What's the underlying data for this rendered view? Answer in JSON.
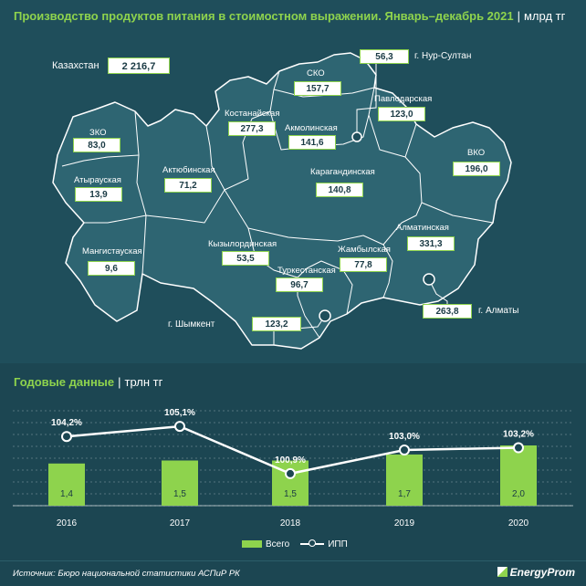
{
  "header": {
    "title": "Производство продуктов питания в стоимостном выражении. Январь–декабрь 2021",
    "unit": "млрд тг"
  },
  "total": {
    "label": "Казахстан",
    "value": "2 216,7"
  },
  "regions": [
    {
      "name": "ЗКО",
      "value": "83,0"
    },
    {
      "name": "Атырауская",
      "value": "13,9"
    },
    {
      "name": "Мангистауская",
      "value": "9,6"
    },
    {
      "name": "Актюбинская",
      "value": "71,2"
    },
    {
      "name": "Костанайская",
      "value": "277,3"
    },
    {
      "name": "СКО",
      "value": "157,7"
    },
    {
      "name": "Акмолинская",
      "value": "141,6"
    },
    {
      "name": "Павлодарская",
      "value": "123,0"
    },
    {
      "name": "ВКО",
      "value": "196,0"
    },
    {
      "name": "Карагандинская",
      "value": "140,8"
    },
    {
      "name": "Кызылординская",
      "value": "53,5"
    },
    {
      "name": "Туркестанская",
      "value": "96,7"
    },
    {
      "name": "Жамбылская",
      "value": "77,8"
    },
    {
      "name": "Алматинская",
      "value": "331,3"
    },
    {
      "name": "г. Нур-Султан",
      "value": "56,3"
    },
    {
      "name": "г. Алматы",
      "value": "263,8"
    },
    {
      "name": "г. Шымкент",
      "value": "123,2"
    }
  ],
  "annual": {
    "title": "Годовые данные",
    "unit": "трлн тг"
  },
  "colors": {
    "accent": "#8ed34d",
    "background": "#1f4e5b",
    "map_fill": "#2e6572"
  },
  "chart_data": {
    "type": "bar",
    "categories": [
      "2016",
      "2017",
      "2018",
      "2019",
      "2020"
    ],
    "series": [
      {
        "name": "Всего",
        "type": "bar",
        "values": [
          1.4,
          1.5,
          1.5,
          1.7,
          2.0
        ],
        "labels": [
          "1,4",
          "1,5",
          "1,5",
          "1,7",
          "2,0"
        ]
      },
      {
        "name": "ИПП",
        "type": "line",
        "values": [
          104.2,
          105.1,
          100.9,
          103.0,
          103.2
        ],
        "labels": [
          "104,2%",
          "105,1%",
          "100,9%",
          "103,0%",
          "103,2%"
        ]
      }
    ],
    "legend": "bottom",
    "grid": true
  },
  "source": "Источник: Бюро национальной статистики АСПиР РК",
  "brand": "EnergyProm"
}
